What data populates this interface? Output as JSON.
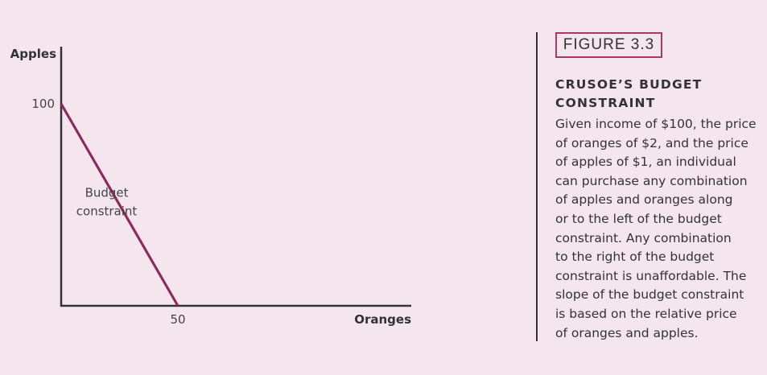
{
  "chart_data": {
    "type": "line",
    "title": "",
    "xlabel": "Oranges",
    "ylabel": "Apples",
    "xlim": [
      0,
      150
    ],
    "ylim": [
      0,
      100
    ],
    "x_ticks": [
      {
        "value": 50,
        "label": "50"
      }
    ],
    "y_ticks": [
      {
        "value": 100,
        "label": "100"
      }
    ],
    "grid": false,
    "series": [
      {
        "name": "Budget constraint",
        "color": "#8c2a5e",
        "points": [
          [
            0,
            100
          ],
          [
            50,
            0
          ]
        ]
      }
    ],
    "annotations": [
      {
        "text_lines": [
          "Budget",
          "constraint"
        ],
        "x": 19.5,
        "y": 54
      }
    ],
    "axis_color": "#333333"
  },
  "figure": {
    "label": "FIGURE 3.3",
    "title": "CRUSOE’S BUDGET\nCONSTRAINT",
    "body": "Given income of $100, the price\nof oranges of $2, and the price\nof apples of $1, an individual\ncan purchase any combination\nof apples and oranges along\nor to the left of the budget\nconstraint. Any combination\nto the right of the budget\nconstraint is unaffordable. The\nslope of the budget constraint\nis based on the relative price\nof oranges and apples."
  },
  "colors": {
    "background": "#f5e6ee",
    "accent": "#a8386a",
    "line": "#8c2a5e"
  }
}
